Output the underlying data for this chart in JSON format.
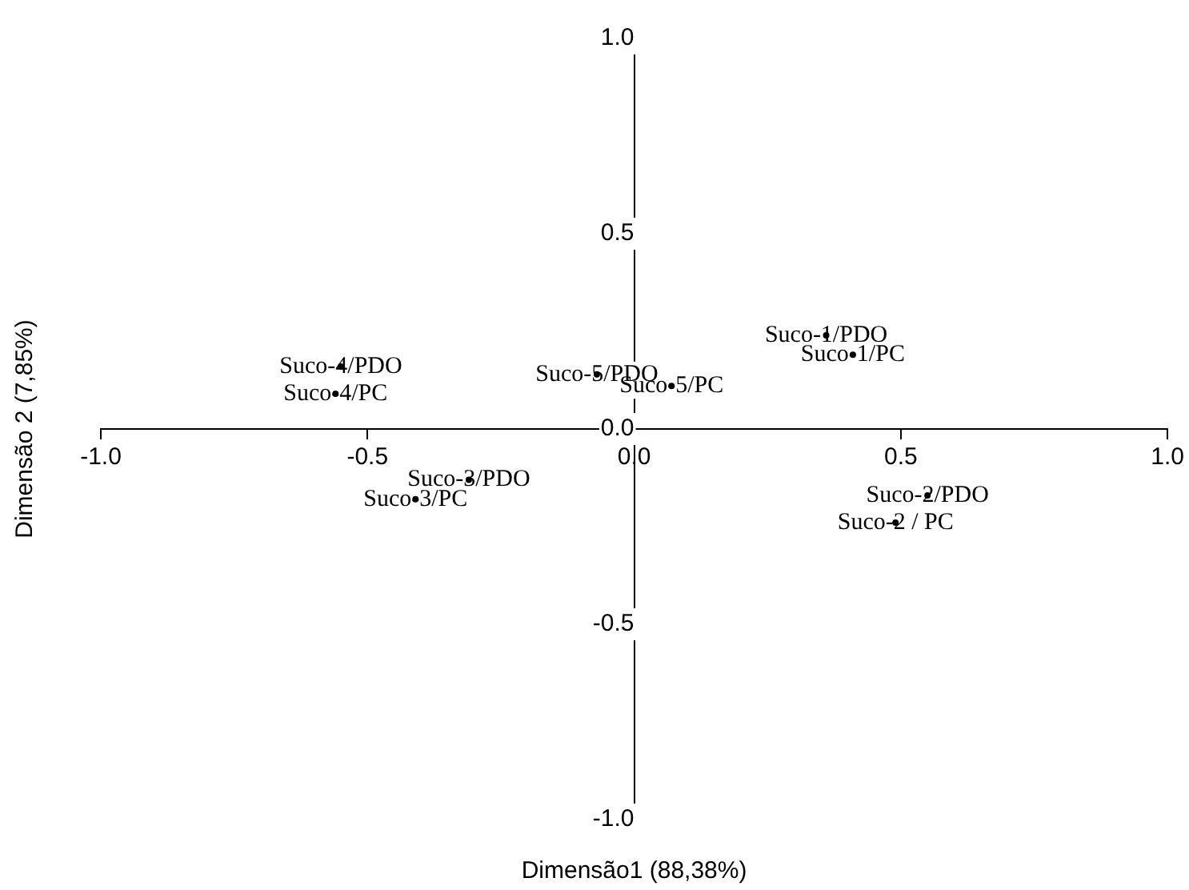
{
  "chart_data": {
    "type": "scatter",
    "xlabel": "Dimensão1 (88,38%)",
    "ylabel": "Dimensão 2 (7,85%)",
    "xlim": [
      -1,
      1
    ],
    "ylim": [
      -1,
      1
    ],
    "xticks": [
      {
        "value": -1,
        "label": "-1.0"
      },
      {
        "value": -0.5,
        "label": "-0.5"
      },
      {
        "value": 0,
        "label": "0.0"
      },
      {
        "value": 0.5,
        "label": "0.5"
      },
      {
        "value": 1,
        "label": "1.0"
      }
    ],
    "yticks": [
      {
        "value": -1,
        "label": "-1.0"
      },
      {
        "value": -0.5,
        "label": "-0.5"
      },
      {
        "value": 0,
        "label": "0.0"
      },
      {
        "value": 0.5,
        "label": "0.5"
      },
      {
        "value": 1,
        "label": "1.0"
      }
    ],
    "grid": false,
    "legend": false,
    "series": [
      {
        "color": "#000000",
        "x": [
          0.36,
          0.41,
          0.55,
          0.49,
          -0.31,
          -0.41,
          -0.55,
          -0.56,
          -0.07,
          0.07
        ],
        "values": [
          0.24,
          0.19,
          -0.17,
          -0.24,
          -0.13,
          -0.18,
          0.16,
          0.09,
          0.14,
          0.11
        ],
        "value_labels": [
          "Suco-1/PDO",
          "Suco-1/PC",
          "Suco-2/PDO",
          "Suco-2 / PC",
          "Suco-3/PDO",
          "Suco-3/PC",
          "Suco-4/PDO",
          "Suco-4/PC",
          "Suco-5/PDO",
          "Suco-5/PC"
        ]
      }
    ]
  }
}
